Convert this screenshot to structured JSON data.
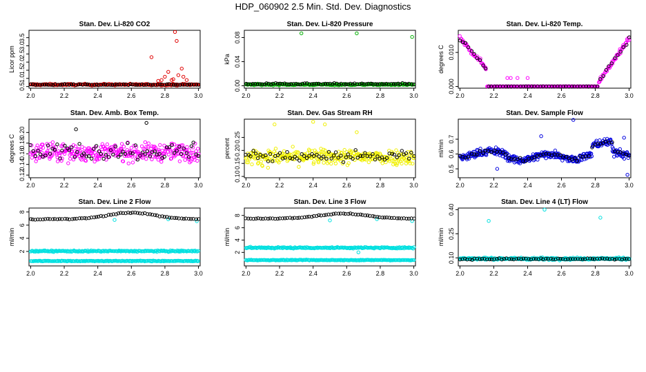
{
  "figure": {
    "title": "HDP_060902  2.5 Min. Std. Dev. Diagnostics"
  },
  "colors": {
    "black": "#000000",
    "red": "#e00000",
    "green": "#00b000",
    "magenta": "#ff00ff",
    "yellow": "#f0f000",
    "blue": "#0000e0",
    "cyan": "#00e0e0"
  },
  "chart_data": [
    {
      "type": "scatter",
      "title": "Stan. Dev. Li-820 CO2",
      "ylabel": "Licor ppm",
      "xlabel": "",
      "xlim": [
        1.99,
        3.01
      ],
      "ylim": [
        0.4,
        3.95
      ],
      "xticks": [
        "2.0",
        "2.2",
        "2.4",
        "2.6",
        "2.8",
        "3.0"
      ],
      "yticks": [
        "0.5",
        "1.0",
        "1.5",
        "2.0",
        "2.5",
        "3.0",
        "3.5"
      ],
      "series": [
        {
          "name": "co2_primary",
          "color": "red",
          "base": 0.62,
          "spread": 0.08,
          "n": 200,
          "extra": [
            [
              2.72,
              2.3
            ],
            [
              2.86,
              3.85
            ],
            [
              2.87,
              3.3
            ],
            [
              2.8,
              1.1
            ],
            [
              2.82,
              1.4
            ],
            [
              2.84,
              0.9
            ],
            [
              2.88,
              1.2
            ],
            [
              2.9,
              1.6
            ],
            [
              2.91,
              1.1
            ],
            [
              2.85,
              0.95
            ],
            [
              2.78,
              0.9
            ],
            [
              2.76,
              0.85
            ],
            [
              2.93,
              0.9
            ]
          ]
        },
        {
          "name": "co2_secondary",
          "color": "black",
          "base": 0.62,
          "spread": 0.06,
          "n": 75,
          "extra": []
        }
      ]
    },
    {
      "type": "scatter",
      "title": "Stan. Dev. Li-820 Pressure",
      "ylabel": "kPa",
      "xlabel": "",
      "xlim": [
        1.99,
        3.01
      ],
      "ylim": [
        -0.004,
        0.092
      ],
      "xticks": [
        "2.0",
        "2.2",
        "2.4",
        "2.6",
        "2.8",
        "3.0"
      ],
      "yticks": [
        "0.00",
        "0.04",
        "0.08"
      ],
      "series": [
        {
          "name": "pressure_primary",
          "color": "green",
          "base": 0.002,
          "spread": 0.002,
          "n": 200,
          "extra": [
            [
              2.33,
              0.087
            ],
            [
              2.66,
              0.087
            ],
            [
              2.99,
              0.081
            ]
          ]
        },
        {
          "name": "pressure_secondary",
          "color": "black",
          "base": 0.003,
          "spread": 0.002,
          "n": 75,
          "extra": []
        }
      ]
    },
    {
      "type": "scatter",
      "title": "Stan. Dev. Li-820 Temp.",
      "ylabel": "degrees C",
      "xlabel": "",
      "xlim": [
        1.99,
        3.01
      ],
      "ylim": [
        -0.0005,
        0.0165
      ],
      "xticks": [
        "2.0",
        "2.2",
        "2.4",
        "2.6",
        "2.8",
        "3.0"
      ],
      "yticks": [
        "0.000",
        "0.010"
      ],
      "shape": "v",
      "series": [
        {
          "name": "temp_primary",
          "color": "magenta",
          "n": 240,
          "extra": [
            [
              2.28,
              0.0025
            ],
            [
              2.3,
              0.0025
            ],
            [
              2.34,
              0.0025
            ],
            [
              2.4,
              0.0025
            ]
          ]
        },
        {
          "name": "temp_secondary",
          "color": "black",
          "n": 60,
          "extra": []
        }
      ]
    },
    {
      "type": "scatter",
      "title": "Stan. Dev. Amb. Box Temp.",
      "ylabel": "degrees C",
      "xlabel": "",
      "xlim": [
        1.99,
        3.01
      ],
      "ylim": [
        0.115,
        0.225
      ],
      "xticks": [
        "2.0",
        "2.2",
        "2.4",
        "2.6",
        "2.8",
        "3.0"
      ],
      "yticks": [
        "0.12",
        "0.14",
        "0.16",
        "0.18",
        "0.20"
      ],
      "series": [
        {
          "name": "boxtemp_primary",
          "color": "magenta",
          "base": 0.163,
          "spread": 0.028,
          "n": 320,
          "extra": []
        },
        {
          "name": "boxtemp_secondary",
          "color": "black",
          "base": 0.165,
          "spread": 0.028,
          "n": 70,
          "extra": [
            [
              2.69,
              0.218
            ],
            [
              2.27,
              0.206
            ]
          ]
        }
      ]
    },
    {
      "type": "scatter",
      "title": "Stan. Dev. Gas Stream RH",
      "ylabel": "percent",
      "xlabel": "",
      "xlim": [
        1.99,
        3.01
      ],
      "ylim": [
        0.095,
        0.32
      ],
      "xticks": [
        "2.0",
        "2.2",
        "2.4",
        "2.6",
        "2.8",
        "3.0"
      ],
      "yticks": [
        "0.10",
        "0.15",
        "0.20",
        "0.25"
      ],
      "series": [
        {
          "name": "rh_primary",
          "color": "yellow",
          "base": 0.175,
          "spread": 0.05,
          "n": 320,
          "extra": [
            [
              2.4,
              0.31
            ],
            [
              2.47,
              0.3
            ],
            [
              2.17,
              0.3
            ],
            [
              2.66,
              0.27
            ]
          ]
        },
        {
          "name": "rh_secondary",
          "color": "black",
          "base": 0.178,
          "spread": 0.04,
          "n": 70,
          "extra": []
        }
      ]
    },
    {
      "type": "scatter",
      "title": "Stan. Dev. Sample Flow",
      "ylabel": "ml/min",
      "xlabel": "",
      "xlim": [
        1.99,
        3.01
      ],
      "ylim": [
        0.44,
        0.835
      ],
      "xticks": [
        "2.0",
        "2.2",
        "2.4",
        "2.6",
        "2.8",
        "3.0"
      ],
      "yticks": [
        "0.5",
        "0.6",
        "0.7"
      ],
      "shape": "wave",
      "series": [
        {
          "name": "flow_primary",
          "color": "blue",
          "n": 360,
          "extra": [
            [
              2.67,
              0.83
            ],
            [
              2.48,
              0.72
            ],
            [
              2.97,
              0.71
            ],
            [
              2.99,
              0.46
            ],
            [
              2.22,
              0.5
            ]
          ]
        },
        {
          "name": "flow_secondary",
          "color": "black",
          "n": 60,
          "extra": []
        }
      ]
    },
    {
      "type": "scatter",
      "title": "Stan. Dev. Line 2 Flow",
      "ylabel": "ml/min",
      "xlabel": "",
      "xlim": [
        1.99,
        3.01
      ],
      "ylim": [
        -0.2,
        8.6
      ],
      "xticks": [
        "2.0",
        "2.2",
        "2.4",
        "2.6",
        "2.8",
        "3.0"
      ],
      "yticks": [
        "2",
        "4",
        "6",
        "8"
      ],
      "series": [
        {
          "name": "line2_lower",
          "color": "cyan",
          "base": 0.55,
          "spread": 0.1,
          "n": 220,
          "extra": []
        },
        {
          "name": "line2_upper",
          "color": "cyan",
          "base": 2.05,
          "spread": 0.18,
          "n": 220,
          "extra": [
            [
              2.5,
              6.8
            ],
            [
              2.82,
              6.9
            ],
            [
              2.99,
              6.6
            ]
          ]
        },
        {
          "name": "line2_black",
          "color": "black",
          "curve": "hump",
          "n": 70,
          "extra": []
        }
      ]
    },
    {
      "type": "scatter",
      "title": "Stan. Dev. Line 3 Flow",
      "ylabel": "ml/min",
      "xlabel": "",
      "xlim": [
        1.99,
        3.01
      ],
      "ylim": [
        -0.2,
        9.2
      ],
      "xticks": [
        "2.0",
        "2.2",
        "2.4",
        "2.6",
        "2.8",
        "3.0"
      ],
      "yticks": [
        "2",
        "4",
        "6",
        "8"
      ],
      "series": [
        {
          "name": "line3_lower",
          "color": "cyan",
          "base": 0.75,
          "spread": 0.1,
          "n": 220,
          "extra": []
        },
        {
          "name": "line3_upper",
          "color": "cyan",
          "base": 2.75,
          "spread": 0.2,
          "n": 220,
          "extra": [
            [
              2.5,
              7.2
            ],
            [
              2.78,
              7.4
            ],
            [
              2.99,
              7.1
            ],
            [
              2.67,
              2.0
            ]
          ]
        },
        {
          "name": "line3_black",
          "color": "black",
          "curve": "hump3",
          "n": 70,
          "extra": []
        }
      ]
    },
    {
      "type": "scatter",
      "title": "Stan. Dev. Line 4 (LT) Flow",
      "ylabel": "ml/min",
      "xlabel": "",
      "xlim": [
        1.99,
        3.01
      ],
      "ylim": [
        0.05,
        0.41
      ],
      "xticks": [
        "2.0",
        "2.2",
        "2.4",
        "2.6",
        "2.8",
        "3.0"
      ],
      "yticks": [
        "0.10",
        "0.25",
        "0.40"
      ],
      "series": [
        {
          "name": "line4_primary",
          "color": "cyan",
          "base": 0.095,
          "spread": 0.012,
          "n": 300,
          "extra": [
            [
              2.17,
              0.33
            ],
            [
              2.5,
              0.4
            ],
            [
              2.83,
              0.35
            ]
          ]
        },
        {
          "name": "line4_secondary",
          "color": "black",
          "base": 0.093,
          "spread": 0.008,
          "n": 70,
          "extra": []
        }
      ]
    }
  ]
}
